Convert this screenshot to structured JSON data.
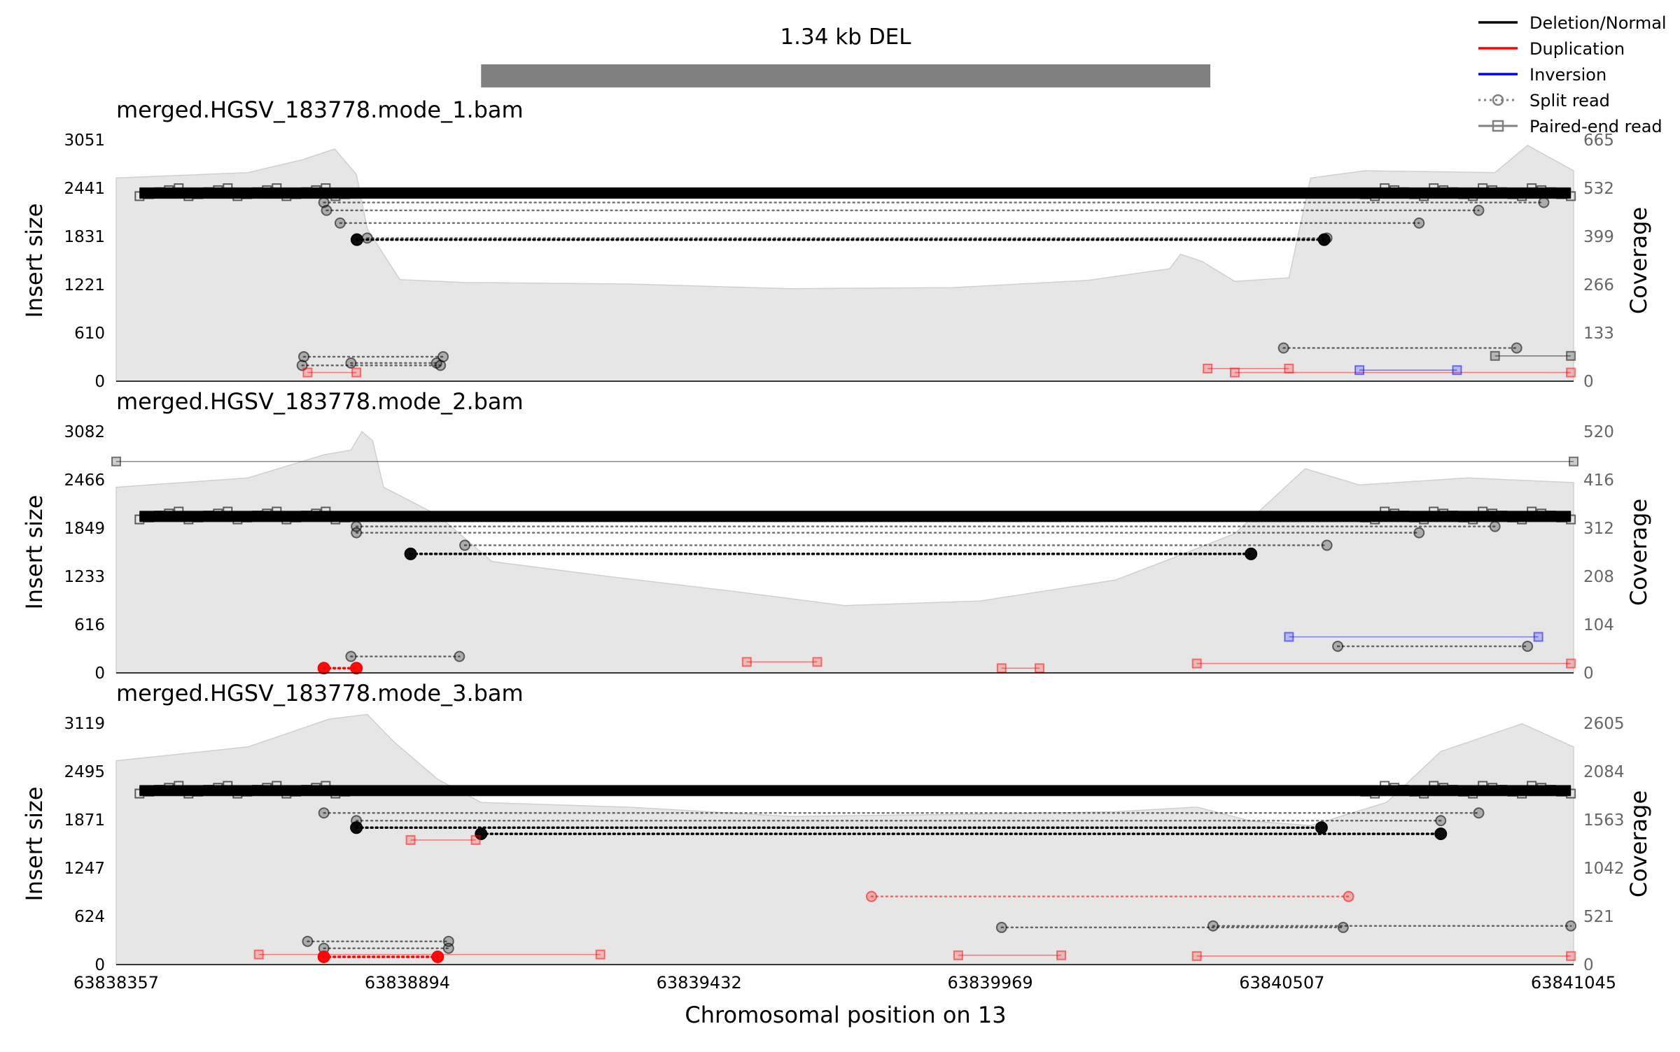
{
  "figure": {
    "title": "1.34 kb DEL",
    "xlabel": "Chromosomal position on 13",
    "xticks": [
      "63838357",
      "63838894",
      "63839432",
      "63839969",
      "63840507",
      "63841045"
    ],
    "xlim": [
      63838357,
      63841045
    ],
    "sv_bar": {
      "start": 63839030,
      "end": 63840375,
      "color": "#808080"
    }
  },
  "legend": [
    {
      "label": "Deletion/Normal",
      "color": "#000000",
      "style": "line"
    },
    {
      "label": "Duplication",
      "color": "#ff0000",
      "style": "line"
    },
    {
      "label": "Inversion",
      "color": "#0000ff",
      "style": "line"
    },
    {
      "label": "Split read",
      "color": "#808080",
      "style": "split"
    },
    {
      "label": "Paired-end read",
      "color": "#808080",
      "style": "paired"
    }
  ],
  "colors": {
    "deletion": "#000000",
    "duplication": "#ff0000",
    "inversion": "#0000ff",
    "coverage": "#e6e6e6"
  },
  "chart_data": [
    {
      "type": "line",
      "title": "merged.HGSV_183778.mode_1.bam",
      "ylabel": "Insert size",
      "ylabel_right": "Coverage",
      "yticks": [
        "3051",
        "2441",
        "1831",
        "1221",
        "610",
        "0"
      ],
      "yticks_right": [
        "665",
        "532",
        "399",
        "266",
        "133",
        "0"
      ],
      "ylim": [
        0,
        3051
      ],
      "ylim_right": [
        0,
        665
      ],
      "coverage_profile": [
        [
          63838357,
          560
        ],
        [
          63838600,
          575
        ],
        [
          63838700,
          610
        ],
        [
          63838760,
          640
        ],
        [
          63838800,
          570
        ],
        [
          63838820,
          420
        ],
        [
          63838880,
          280
        ],
        [
          63839000,
          272
        ],
        [
          63839300,
          268
        ],
        [
          63839600,
          255
        ],
        [
          63839900,
          258
        ],
        [
          63840150,
          278
        ],
        [
          63840300,
          310
        ],
        [
          63840320,
          350
        ],
        [
          63840360,
          330
        ],
        [
          63840420,
          275
        ],
        [
          63840520,
          285
        ],
        [
          63840560,
          560
        ],
        [
          63840660,
          580
        ],
        [
          63840900,
          575
        ],
        [
          63840960,
          650
        ],
        [
          63841045,
          580
        ]
      ],
      "reads": [
        {
          "kind": "split",
          "sv": "deletion",
          "x1": 63838801,
          "x2": 63840585,
          "y": 1790,
          "emph": true
        },
        {
          "kind": "split",
          "sv": "deletion",
          "x1": 63838820,
          "x2": 63840590,
          "y": 1810
        },
        {
          "kind": "split",
          "sv": "deletion",
          "x1": 63838770,
          "x2": 63840760,
          "y": 2000
        },
        {
          "kind": "split",
          "sv": "deletion",
          "x1": 63838745,
          "x2": 63840870,
          "y": 2160
        },
        {
          "kind": "split",
          "sv": "deletion",
          "x1": 63838740,
          "x2": 63840990,
          "y": 2260
        },
        {
          "kind": "paired",
          "sv": "deletion",
          "x1": 63838400,
          "x2": 63841040,
          "y": 2380,
          "band": true
        },
        {
          "kind": "split",
          "sv": "deletion",
          "x1": 63838700,
          "x2": 63838955,
          "y": 200
        },
        {
          "kind": "split",
          "sv": "deletion",
          "x1": 63838790,
          "x2": 63838948,
          "y": 230
        },
        {
          "kind": "split",
          "sv": "deletion",
          "x1": 63838703,
          "x2": 63838960,
          "y": 310
        },
        {
          "kind": "split",
          "sv": "deletion",
          "x1": 63840510,
          "x2": 63840940,
          "y": 420
        },
        {
          "kind": "paired",
          "sv": "duplication",
          "x1": 63838710,
          "x2": 63838800,
          "y": 110
        },
        {
          "kind": "paired",
          "sv": "duplication",
          "x1": 63840370,
          "x2": 63840520,
          "y": 160
        },
        {
          "kind": "paired",
          "sv": "duplication",
          "x1": 63840420,
          "x2": 63841040,
          "y": 110
        },
        {
          "kind": "paired",
          "sv": "inversion",
          "x1": 63840650,
          "x2": 63840830,
          "y": 140
        },
        {
          "kind": "paired",
          "sv": "deletion",
          "x1": 63840900,
          "x2": 63841040,
          "y": 320
        }
      ]
    },
    {
      "type": "line",
      "title": "merged.HGSV_183778.mode_2.bam",
      "ylabel": "Insert size",
      "ylabel_right": "Coverage",
      "yticks": [
        "3082",
        "2466",
        "1849",
        "1233",
        "616",
        "0"
      ],
      "yticks_right": [
        "520",
        "416",
        "312",
        "208",
        "104",
        "0"
      ],
      "ylim": [
        0,
        3082
      ],
      "ylim_right": [
        0,
        520
      ],
      "coverage_profile": [
        [
          63838357,
          400
        ],
        [
          63838600,
          420
        ],
        [
          63838740,
          470
        ],
        [
          63838790,
          480
        ],
        [
          63838810,
          520
        ],
        [
          63838830,
          500
        ],
        [
          63838850,
          400
        ],
        [
          63838950,
          340
        ],
        [
          63839050,
          240
        ],
        [
          63839250,
          210
        ],
        [
          63839500,
          175
        ],
        [
          63839700,
          145
        ],
        [
          63839950,
          155
        ],
        [
          63840200,
          200
        ],
        [
          63840300,
          245
        ],
        [
          63840420,
          300
        ],
        [
          63840550,
          440
        ],
        [
          63840650,
          405
        ],
        [
          63840850,
          420
        ],
        [
          63841045,
          410
        ]
      ],
      "reads": [
        {
          "kind": "split",
          "sv": "deletion",
          "x1": 63838900,
          "x2": 63840450,
          "y": 1520,
          "emph": true
        },
        {
          "kind": "split",
          "sv": "deletion",
          "x1": 63839000,
          "x2": 63840590,
          "y": 1630
        },
        {
          "kind": "split",
          "sv": "deletion",
          "x1": 63838800,
          "x2": 63840760,
          "y": 1790
        },
        {
          "kind": "split",
          "sv": "deletion",
          "x1": 63838800,
          "x2": 63840900,
          "y": 1870
        },
        {
          "kind": "paired",
          "sv": "deletion",
          "x1": 63838400,
          "x2": 63841040,
          "y": 2000,
          "band": true
        },
        {
          "kind": "paired",
          "sv": "deletion",
          "x1": 63838357,
          "x2": 63841045,
          "y": 2700
        },
        {
          "kind": "split",
          "sv": "duplication",
          "x1": 63838740,
          "x2": 63838800,
          "y": 60,
          "emph": true
        },
        {
          "kind": "split",
          "sv": "deletion",
          "x1": 63838790,
          "x2": 63838990,
          "y": 210
        },
        {
          "kind": "paired",
          "sv": "duplication",
          "x1": 63839520,
          "x2": 63839650,
          "y": 140
        },
        {
          "kind": "paired",
          "sv": "duplication",
          "x1": 63839990,
          "x2": 63840060,
          "y": 60
        },
        {
          "kind": "paired",
          "sv": "duplication",
          "x1": 63840350,
          "x2": 63841040,
          "y": 120
        },
        {
          "kind": "paired",
          "sv": "inversion",
          "x1": 63840520,
          "x2": 63840980,
          "y": 460
        },
        {
          "kind": "split",
          "sv": "deletion",
          "x1": 63840610,
          "x2": 63840960,
          "y": 340
        }
      ]
    },
    {
      "type": "line",
      "title": "merged.HGSV_183778.mode_3.bam",
      "ylabel": "Insert size",
      "ylabel_right": "Coverage",
      "yticks": [
        "3119",
        "2495",
        "1871",
        "1247",
        "624",
        "0"
      ],
      "yticks_right": [
        "2605",
        "2084",
        "1563",
        "1042",
        "521",
        "0"
      ],
      "ylim": [
        0,
        3119
      ],
      "ylim_right": [
        0,
        2605
      ],
      "coverage_profile": [
        [
          63838357,
          2200
        ],
        [
          63838600,
          2350
        ],
        [
          63838750,
          2650
        ],
        [
          63838820,
          2700
        ],
        [
          63838870,
          2400
        ],
        [
          63838950,
          2000
        ],
        [
          63839030,
          1750
        ],
        [
          63839300,
          1700
        ],
        [
          63839600,
          1600
        ],
        [
          63839900,
          1620
        ],
        [
          63840200,
          1650
        ],
        [
          63840350,
          1700
        ],
        [
          63840450,
          1550
        ],
        [
          63840560,
          1500
        ],
        [
          63840700,
          1750
        ],
        [
          63840800,
          2300
        ],
        [
          63840950,
          2600
        ],
        [
          63841045,
          2350
        ]
      ],
      "reads": [
        {
          "kind": "split",
          "sv": "deletion",
          "x1": 63839030,
          "x2": 63840800,
          "y": 1690,
          "emph": true
        },
        {
          "kind": "split",
          "sv": "deletion",
          "x1": 63838800,
          "x2": 63840580,
          "y": 1770,
          "emph": true
        },
        {
          "kind": "split",
          "sv": "deletion",
          "x1": 63838800,
          "x2": 63840800,
          "y": 1860
        },
        {
          "kind": "split",
          "sv": "deletion",
          "x1": 63838740,
          "x2": 63840870,
          "y": 1960
        },
        {
          "kind": "paired",
          "sv": "deletion",
          "x1": 63838400,
          "x2": 63841040,
          "y": 2250,
          "band": true
        },
        {
          "kind": "split",
          "sv": "duplication",
          "x1": 63839750,
          "x2": 63840630,
          "y": 880
        },
        {
          "kind": "split",
          "sv": "deletion",
          "x1": 63839990,
          "x2": 63840620,
          "y": 480
        },
        {
          "kind": "split",
          "sv": "deletion",
          "x1": 63840380,
          "x2": 63841040,
          "y": 500
        },
        {
          "kind": "split",
          "sv": "deletion",
          "x1": 63838710,
          "x2": 63838970,
          "y": 300
        },
        {
          "kind": "split",
          "sv": "deletion",
          "x1": 63838740,
          "x2": 63838970,
          "y": 210
        },
        {
          "kind": "split",
          "sv": "duplication",
          "x1": 63838740,
          "x2": 63838950,
          "y": 100,
          "emph": true
        },
        {
          "kind": "paired",
          "sv": "duplication",
          "x1": 63838620,
          "x2": 63839250,
          "y": 130
        },
        {
          "kind": "paired",
          "sv": "duplication",
          "x1": 63839910,
          "x2": 63840100,
          "y": 120
        },
        {
          "kind": "paired",
          "sv": "duplication",
          "x1": 63840350,
          "x2": 63841040,
          "y": 110
        },
        {
          "kind": "paired",
          "sv": "duplication",
          "x1": 63838900,
          "x2": 63839020,
          "y": 1610
        }
      ]
    }
  ]
}
